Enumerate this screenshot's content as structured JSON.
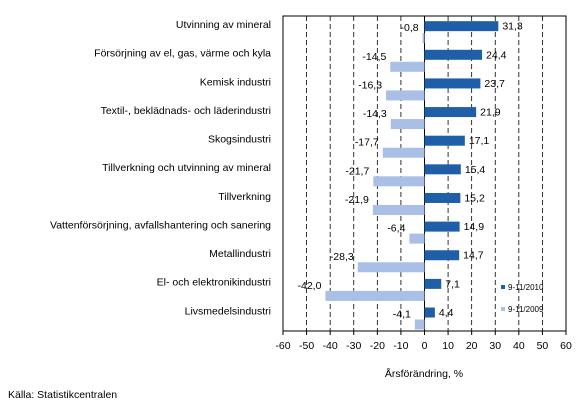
{
  "chart_data": {
    "type": "bar",
    "orientation": "horizontal",
    "title": "",
    "xlabel": "Årsförändring, %",
    "ylabel": "",
    "xlim": [
      -60,
      60
    ],
    "xticks": [
      -60,
      -50,
      -40,
      -30,
      -20,
      -10,
      0,
      10,
      20,
      30,
      40,
      50,
      60
    ],
    "tick_labels": [
      "-60",
      "-50",
      "-40",
      "-30",
      "-20",
      "-10",
      "0",
      "10",
      "20",
      "30",
      "40",
      "50",
      "60"
    ],
    "grid": "vertical dashed",
    "legend_position": "lower-right",
    "categories": [
      "Utvinning av mineral",
      "Försörjning av el, gas, värme och kyla",
      "Kemisk industri",
      "Textil-, beklädnads- och läderindustri",
      "Skogsindustri",
      "Tillverkning och utvinning av mineral",
      "Tillverkning",
      "Vattenförsörjning, avfallshantering och sanering",
      "Metallindustri",
      "El- och elektronikindustri",
      "Livsmedelsindustri"
    ],
    "series": [
      {
        "name": "9-11/2010",
        "color": "#1f5fa8",
        "values": [
          31.3,
          24.4,
          23.7,
          21.9,
          17.1,
          15.4,
          15.2,
          14.9,
          14.7,
          7.1,
          4.4
        ],
        "labels": [
          "31,3",
          "24,4",
          "23,7",
          "21,9",
          "17,1",
          "15,4",
          "15,2",
          "14,9",
          "14,7",
          "7,1",
          "4,4"
        ]
      },
      {
        "name": "9-11/2009",
        "color": "#a9bfe6",
        "values": [
          -0.8,
          -14.5,
          -16.3,
          -14.3,
          -17.7,
          -21.7,
          -21.9,
          -6.4,
          -28.3,
          -42.0,
          -4.1
        ],
        "labels": [
          "-0,8",
          "-14,5",
          "-16,3",
          "-14,3",
          "-17,7",
          "-21,7",
          "-21,9",
          "-6,4",
          "-28,3",
          "-42,0",
          "-4,1"
        ]
      }
    ]
  },
  "source": "Källa: Statistikcentralen"
}
